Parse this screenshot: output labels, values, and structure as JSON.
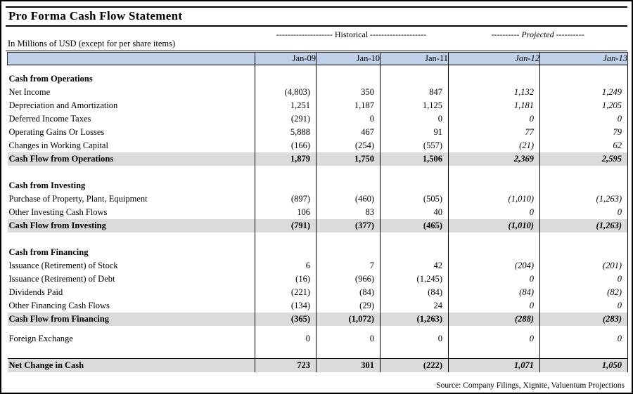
{
  "title": "Pro Forma Cash Flow Statement",
  "subtitle": "In Millions of USD (except for per share items)",
  "group_headers": {
    "historical": "-------------------- Historical --------------------",
    "projected": "---------- Projected ----------"
  },
  "source": "Source: Company Filings, Xignite, Valuentum Projections",
  "colors": {
    "header_bg": "#BFD1E8",
    "subtotal_bg": "#DBDBDB",
    "border": "#000000"
  },
  "table": {
    "columns": [
      {
        "label": "Jan-09",
        "projected": false
      },
      {
        "label": "Jan-10",
        "projected": false
      },
      {
        "label": "Jan-11",
        "projected": false
      },
      {
        "label": "Jan-12",
        "projected": true
      },
      {
        "label": "Jan-13",
        "projected": true
      }
    ],
    "rows": [
      {
        "type": "spacer-sm"
      },
      {
        "type": "section",
        "label": "Cash from Operations"
      },
      {
        "type": "data",
        "label": "Net Income",
        "values": [
          "(4,803)",
          "350",
          "847",
          "1,132",
          "1,249"
        ]
      },
      {
        "type": "data",
        "label": "Depreciation and Amortization",
        "values": [
          "1,251",
          "1,187",
          "1,125",
          "1,181",
          "1,205"
        ]
      },
      {
        "type": "data",
        "label": "Deferred Income Taxes",
        "values": [
          "(291)",
          "0",
          "0",
          "0",
          "0"
        ]
      },
      {
        "type": "data",
        "label": "Operating Gains Or Losses",
        "values": [
          "5,888",
          "467",
          "91",
          "77",
          "79"
        ]
      },
      {
        "type": "data",
        "label": "Changes in Working Capital",
        "values": [
          "(166)",
          "(254)",
          "(557)",
          "(21)",
          "62"
        ]
      },
      {
        "type": "subtotal",
        "label": "Cash Flow from Operations",
        "values": [
          "1,879",
          "1,750",
          "1,506",
          "2,369",
          "2,595"
        ]
      },
      {
        "type": "spacer"
      },
      {
        "type": "section",
        "label": "Cash from Investing"
      },
      {
        "type": "data",
        "label": "Purchase of Property, Plant, Equipment",
        "values": [
          "(897)",
          "(460)",
          "(505)",
          "(1,010)",
          "(1,263)"
        ]
      },
      {
        "type": "data",
        "label": "Other Investing Cash Flows",
        "values": [
          "106",
          "83",
          "40",
          "0",
          "0"
        ]
      },
      {
        "type": "subtotal",
        "label": "Cash Flow from Investing",
        "values": [
          "(791)",
          "(377)",
          "(465)",
          "(1,010)",
          "(1,263)"
        ]
      },
      {
        "type": "spacer"
      },
      {
        "type": "section",
        "label": "Cash from Financing"
      },
      {
        "type": "data",
        "label": "Issuance (Retirement) of Stock",
        "values": [
          "6",
          "7",
          "42",
          "(204)",
          "(201)"
        ]
      },
      {
        "type": "data",
        "label": "Issuance (Retirement) of Debt",
        "values": [
          "(16)",
          "(966)",
          "(1,245)",
          "0",
          "0"
        ]
      },
      {
        "type": "data",
        "label": "Dividends Paid",
        "values": [
          "(221)",
          "(84)",
          "(84)",
          "(84)",
          "(82)"
        ]
      },
      {
        "type": "data",
        "label": "Other Financing Cash Flows",
        "values": [
          "(134)",
          "(29)",
          "24",
          "0",
          "0"
        ]
      },
      {
        "type": "subtotal",
        "label": "Cash Flow from Financing",
        "values": [
          "(365)",
          "(1,072)",
          "(1,263)",
          "(288)",
          "(283)"
        ]
      },
      {
        "type": "spacer-xs"
      },
      {
        "type": "data",
        "label": "Foreign Exchange",
        "values": [
          "0",
          "0",
          "0",
          "0",
          "0"
        ]
      },
      {
        "type": "spacer"
      },
      {
        "type": "total",
        "label": "Net Change in Cash",
        "values": [
          "723",
          "301",
          "(222)",
          "1,071",
          "1,050"
        ]
      }
    ]
  }
}
